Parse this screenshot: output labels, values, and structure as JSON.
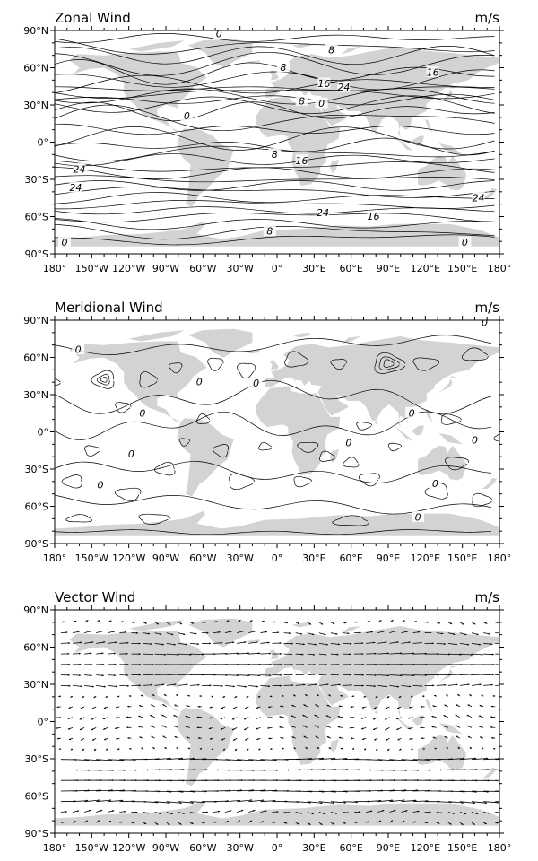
{
  "figure": {
    "panels": [
      {
        "id": "zonal",
        "title": "Zonal Wind",
        "unit": "m/s",
        "kind": "contour",
        "contour_labels": [
          {
            "text": "0",
            "lon": -47,
            "lat": 87
          },
          {
            "text": "8",
            "lon": 44,
            "lat": 74
          },
          {
            "text": "8",
            "lon": 5,
            "lat": 60
          },
          {
            "text": "16",
            "lon": 126,
            "lat": 56
          },
          {
            "text": "16",
            "lon": 38,
            "lat": 47
          },
          {
            "text": "24",
            "lon": 54,
            "lat": 44
          },
          {
            "text": "8",
            "lon": 20,
            "lat": 33
          },
          {
            "text": "0",
            "lon": 36,
            "lat": 31
          },
          {
            "text": "0",
            "lon": -73,
            "lat": 21
          },
          {
            "text": "8",
            "lon": -2,
            "lat": -10
          },
          {
            "text": "16",
            "lon": 20,
            "lat": -15
          },
          {
            "text": "24",
            "lon": -160,
            "lat": -22
          },
          {
            "text": "24",
            "lon": -163,
            "lat": -37
          },
          {
            "text": "24",
            "lon": 163,
            "lat": -45
          },
          {
            "text": "24",
            "lon": 37,
            "lat": -57
          },
          {
            "text": "16",
            "lon": 78,
            "lat": -60
          },
          {
            "text": "8",
            "lon": -6,
            "lat": -72
          },
          {
            "text": "0",
            "lon": -172,
            "lat": -81
          },
          {
            "text": "0",
            "lon": 152,
            "lat": -81
          }
        ]
      },
      {
        "id": "meridional",
        "title": "Meridional Wind",
        "unit": "m/s",
        "kind": "contour",
        "contour_labels": [
          {
            "text": "0",
            "lon": 168,
            "lat": 88
          },
          {
            "text": "0",
            "lon": -161,
            "lat": 66
          },
          {
            "text": "0",
            "lon": -63,
            "lat": 40
          },
          {
            "text": "0",
            "lon": -17,
            "lat": 39
          },
          {
            "text": "0",
            "lon": -109,
            "lat": 15
          },
          {
            "text": "0",
            "lon": 109,
            "lat": 15
          },
          {
            "text": "0",
            "lon": -118,
            "lat": -18
          },
          {
            "text": "0",
            "lon": 58,
            "lat": -9
          },
          {
            "text": "0",
            "lon": 160,
            "lat": -7
          },
          {
            "text": "0",
            "lon": -143,
            "lat": -43
          },
          {
            "text": "0",
            "lon": 128,
            "lat": -42
          },
          {
            "text": "0",
            "lon": 114,
            "lat": -69
          }
        ]
      },
      {
        "id": "vector",
        "title": "Vector Wind",
        "unit": "m/s",
        "kind": "vector"
      }
    ],
    "axes": {
      "x_ticks": [
        "180°",
        "150°W",
        "120°W",
        "90°W",
        "60°W",
        "30°W",
        "0°",
        "30°E",
        "60°E",
        "90°E",
        "120°E",
        "150°E",
        "180°"
      ],
      "y_ticks": [
        "90°N",
        "60°N",
        "30°N",
        "0°",
        "30°S",
        "60°S",
        "90°S"
      ],
      "lon_range": [
        -180,
        180
      ],
      "lat_range": [
        -90,
        90
      ]
    },
    "colors": {
      "land": "#d3d3d3",
      "lines": "#000000",
      "background": "#ffffff"
    }
  }
}
